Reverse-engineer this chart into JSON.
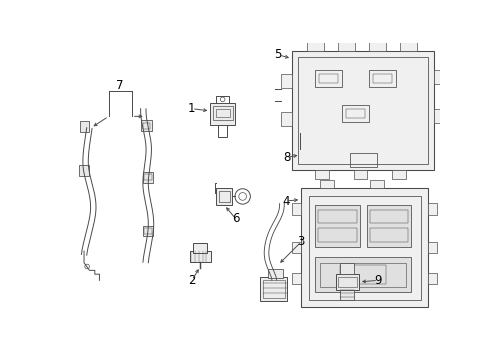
{
  "bg_color": "#ffffff",
  "line_color": "#4a4a4a",
  "label_color": "#000000",
  "label_fontsize": 8.5,
  "fig_width": 4.9,
  "fig_height": 3.6,
  "dpi": 100
}
